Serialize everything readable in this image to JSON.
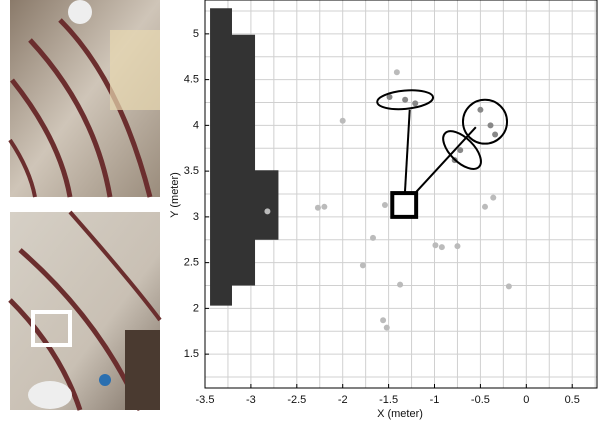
{
  "chart_data": {
    "type": "scatter",
    "xlabel": "X (meter)",
    "ylabel": "Y (meter)",
    "xlim": [
      -3.5,
      0.77
    ],
    "ylim": [
      1.13,
      5.37
    ],
    "xticks": [
      -3.5,
      -3,
      -2.5,
      -2,
      -1.5,
      -1,
      -0.5,
      0,
      0.5
    ],
    "yticks": [
      1.5,
      2,
      2.5,
      3,
      3.5,
      4,
      4.5,
      5
    ],
    "xgrid": [
      -3.5,
      -3.25,
      -3,
      -2.75,
      -2.5,
      -2.25,
      -2,
      -1.75,
      -1.5,
      -1.25,
      -1,
      -0.75,
      -0.5,
      -0.25,
      0,
      0.25,
      0.5,
      0.75
    ],
    "ygrid": [
      1.25,
      1.5,
      1.75,
      2,
      2.25,
      2.5,
      2.75,
      3,
      3.25,
      3.5,
      3.75,
      4,
      4.25,
      4.5,
      4.75,
      5,
      5.25
    ],
    "grid": true,
    "obstacle": {
      "color": "#333333",
      "x": [
        -3.445,
        -3.206,
        -3.206,
        -2.955,
        -2.955,
        -2.7,
        -2.7,
        -2.955,
        -2.955,
        -3.206,
        -3.206,
        -3.445
      ],
      "y": [
        5.28,
        5.28,
        4.99,
        4.99,
        3.51,
        3.51,
        2.75,
        2.75,
        2.25,
        2.25,
        2.03,
        2.03
      ]
    },
    "series": [
      {
        "color": "#bbbbbb",
        "x": [
          -2.0,
          -1.41,
          -2.27,
          -2.2,
          -2.82,
          -1.67,
          -1.54,
          -1.78,
          -1.375,
          -0.92,
          -0.75,
          -0.45,
          -0.36,
          -0.19,
          -1.52,
          -1.56,
          -0.99
        ],
        "y": [
          4.05,
          4.58,
          3.1,
          3.11,
          3.06,
          2.77,
          3.13,
          2.47,
          2.26,
          2.67,
          2.68,
          3.11,
          3.21,
          2.24,
          1.79,
          1.87,
          2.69
        ]
      },
      {
        "color": "#888888",
        "x": [
          -1.32,
          -1.21,
          -1.49,
          -0.5,
          -0.39,
          -0.34,
          -0.72,
          -0.78
        ],
        "y": [
          4.28,
          4.24,
          4.31,
          4.17,
          4.0,
          3.9,
          3.73,
          3.62
        ]
      }
    ],
    "ellipses": [
      {
        "cx": -1.32,
        "cy": 4.28,
        "rx": 0.305,
        "ry": 0.1,
        "angle": 5
      },
      {
        "cx": -0.45,
        "cy": 4.04,
        "rx": 0.24,
        "ry": 0.24,
        "angle": 0
      },
      {
        "cx": -0.7,
        "cy": 3.73,
        "rx": 0.26,
        "ry": 0.13,
        "angle": -45
      }
    ],
    "links": [
      {
        "x": [
          -1.33,
          -1.27
        ],
        "y": [
          3.13,
          4.17
        ]
      },
      {
        "x": [
          -1.33,
          -0.55
        ],
        "y": [
          3.13,
          3.98
        ]
      }
    ],
    "robot": {
      "x": -1.33,
      "y": 3.13,
      "size": 0.26
    }
  }
}
